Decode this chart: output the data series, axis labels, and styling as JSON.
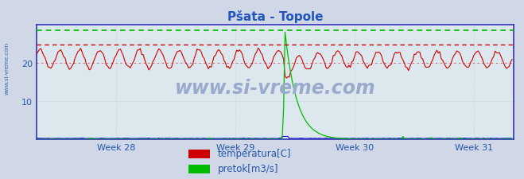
{
  "title": "Pšata - Topole",
  "title_color": "#2255bb",
  "title_fontsize": 11,
  "xlim": [
    0,
    336
  ],
  "ylim": [
    0,
    30
  ],
  "yticks": [
    10,
    20
  ],
  "xtick_labels": [
    "Week 28",
    "Week 29",
    "Week 30",
    "Week 31"
  ],
  "xtick_positions": [
    56,
    140,
    224,
    308
  ],
  "temp_color": "#cc0000",
  "flow_color": "#00bb00",
  "blue_line_color": "#0000cc",
  "plot_bg": "#dde8ee",
  "fig_bg": "#d0d8e8",
  "legend_bg": "#dde8f0",
  "watermark": "www.si-vreme.com",
  "watermark_color": "#99aacc",
  "legend_labels": [
    "temperatura[C]",
    "pretok[m3/s]"
  ],
  "hline_green_y": 28.4,
  "hline_red1_y": 24.8,
  "hline_red2_y": 20.0,
  "spike_x": 175,
  "spike_height": 28.0,
  "n_points": 336,
  "tick_color": "#2255aa",
  "tick_fontsize": 8,
  "spine_color": "#3333bb",
  "grid_color": "#bbbbcc",
  "arrow_color": "#990000"
}
